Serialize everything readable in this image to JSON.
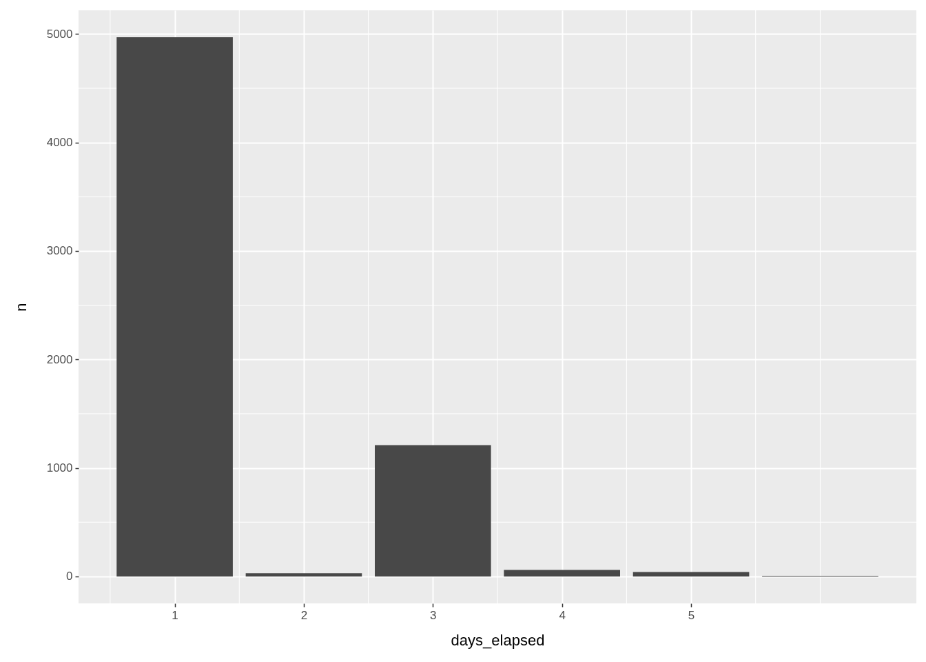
{
  "chart_data": {
    "type": "bar",
    "xlabel": "days_elapsed",
    "ylabel": "n",
    "x": [
      1,
      2,
      3,
      4,
      5,
      6
    ],
    "values": [
      4970,
      30,
      1210,
      60,
      40,
      5
    ],
    "color": "#484848",
    "xlim": [
      0.255,
      6.745
    ],
    "ylim": [
      -248.5,
      5218.5
    ],
    "xticks": [
      1,
      2,
      3,
      4,
      5
    ],
    "yticks": [
      0,
      1000,
      2000,
      3000,
      4000,
      5000
    ],
    "grid": true
  }
}
